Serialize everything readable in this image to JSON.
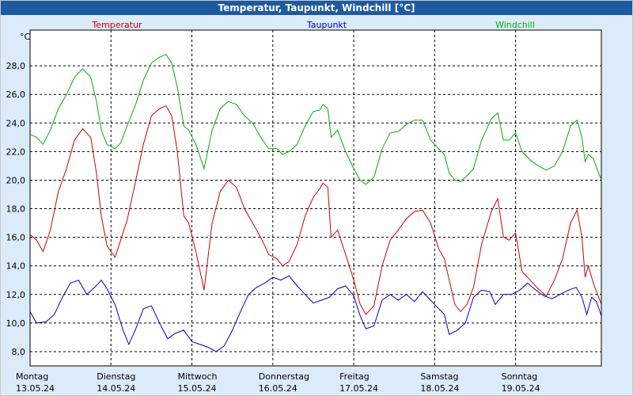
{
  "chart_data": {
    "type": "line",
    "title": "Temperatur, Taupunkt, Windchill [°C]",
    "ylabel": "°C",
    "ylim": [
      7,
      30.5
    ],
    "yticks": [
      "8,0",
      "10,0",
      "12,0",
      "14,0",
      "16,0",
      "18,0",
      "20,0",
      "22,0",
      "24,0",
      "26,0",
      "28,0"
    ],
    "xlim": [
      0,
      7.06
    ],
    "xticks": [
      {
        "day": "Montag",
        "date": "13.05.24"
      },
      {
        "day": "Dienstag",
        "date": "14.05.24"
      },
      {
        "day": "Mittwoch",
        "date": "15.05.24"
      },
      {
        "day": "Donnerstag",
        "date": "16.05.24"
      },
      {
        "day": "Freitag",
        "date": "17.05.24"
      },
      {
        "day": "Samstag",
        "date": "18.05.24"
      },
      {
        "day": "Sonntag",
        "date": "19.05.24"
      }
    ],
    "grid": true,
    "series": [
      {
        "name": "Temperatur",
        "color": "#cc0000",
        "points": [
          [
            0,
            16.2
          ],
          [
            0.08,
            15.8
          ],
          [
            0.16,
            15.0
          ],
          [
            0.25,
            16.5
          ],
          [
            0.35,
            19.2
          ],
          [
            0.45,
            20.8
          ],
          [
            0.55,
            22.8
          ],
          [
            0.65,
            23.6
          ],
          [
            0.75,
            23.0
          ],
          [
            0.82,
            20.5
          ],
          [
            0.88,
            17.5
          ],
          [
            0.95,
            15.4
          ],
          [
            1.05,
            14.6
          ],
          [
            1.12,
            15.8
          ],
          [
            1.2,
            17.2
          ],
          [
            1.3,
            19.8
          ],
          [
            1.4,
            22.5
          ],
          [
            1.5,
            24.5
          ],
          [
            1.6,
            25.0
          ],
          [
            1.68,
            25.2
          ],
          [
            1.75,
            24.5
          ],
          [
            1.82,
            22.0
          ],
          [
            1.9,
            17.5
          ],
          [
            1.96,
            17.0
          ],
          [
            2.05,
            15.0
          ],
          [
            2.15,
            12.3
          ],
          [
            2.25,
            17.0
          ],
          [
            2.35,
            19.2
          ],
          [
            2.45,
            20.0
          ],
          [
            2.55,
            19.5
          ],
          [
            2.65,
            18.0
          ],
          [
            2.75,
            17.0
          ],
          [
            2.85,
            16.0
          ],
          [
            2.95,
            14.8
          ],
          [
            3.05,
            14.5
          ],
          [
            3.12,
            14.0
          ],
          [
            3.2,
            14.3
          ],
          [
            3.3,
            15.5
          ],
          [
            3.4,
            17.5
          ],
          [
            3.5,
            18.8
          ],
          [
            3.58,
            19.4
          ],
          [
            3.62,
            19.8
          ],
          [
            3.68,
            19.5
          ],
          [
            3.72,
            16.0
          ],
          [
            3.8,
            16.5
          ],
          [
            3.9,
            14.8
          ],
          [
            4.0,
            13.0
          ],
          [
            4.08,
            11.3
          ],
          [
            4.15,
            10.6
          ],
          [
            4.25,
            11.2
          ],
          [
            4.35,
            14.0
          ],
          [
            4.45,
            15.8
          ],
          [
            4.55,
            16.5
          ],
          [
            4.65,
            17.3
          ],
          [
            4.75,
            17.8
          ],
          [
            4.85,
            17.9
          ],
          [
            4.95,
            17.0
          ],
          [
            5.05,
            15.2
          ],
          [
            5.12,
            14.5
          ],
          [
            5.18,
            13.0
          ],
          [
            5.25,
            11.3
          ],
          [
            5.32,
            10.8
          ],
          [
            5.4,
            11.3
          ],
          [
            5.48,
            12.5
          ],
          [
            5.58,
            15.5
          ],
          [
            5.7,
            17.8
          ],
          [
            5.78,
            18.7
          ],
          [
            5.85,
            16.0
          ],
          [
            5.92,
            15.8
          ],
          [
            6.0,
            16.3
          ],
          [
            6.08,
            13.6
          ],
          [
            6.18,
            13.0
          ],
          [
            6.28,
            12.4
          ],
          [
            6.38,
            11.9
          ],
          [
            6.48,
            13.0
          ],
          [
            6.58,
            14.5
          ],
          [
            6.68,
            17.0
          ],
          [
            6.76,
            17.9
          ],
          [
            6.82,
            16.0
          ],
          [
            6.86,
            13.2
          ],
          [
            6.9,
            14.0
          ],
          [
            6.96,
            12.8
          ],
          [
            7.06,
            11.3
          ]
        ]
      },
      {
        "name": "Taupunkt",
        "color": "#0000c0",
        "points": [
          [
            0,
            10.8
          ],
          [
            0.08,
            10.0
          ],
          [
            0.2,
            10.1
          ],
          [
            0.3,
            10.6
          ],
          [
            0.4,
            11.8
          ],
          [
            0.5,
            12.8
          ],
          [
            0.6,
            13.0
          ],
          [
            0.7,
            12.0
          ],
          [
            0.8,
            12.5
          ],
          [
            0.88,
            13.0
          ],
          [
            0.95,
            12.4
          ],
          [
            1.05,
            11.3
          ],
          [
            1.15,
            9.5
          ],
          [
            1.22,
            8.5
          ],
          [
            1.3,
            9.5
          ],
          [
            1.4,
            11.0
          ],
          [
            1.5,
            11.2
          ],
          [
            1.6,
            10.0
          ],
          [
            1.7,
            8.9
          ],
          [
            1.8,
            9.3
          ],
          [
            1.9,
            9.5
          ],
          [
            2.0,
            8.7
          ],
          [
            2.1,
            8.5
          ],
          [
            2.2,
            8.3
          ],
          [
            2.3,
            8.0
          ],
          [
            2.4,
            8.4
          ],
          [
            2.5,
            9.5
          ],
          [
            2.6,
            10.8
          ],
          [
            2.7,
            12.0
          ],
          [
            2.8,
            12.5
          ],
          [
            2.9,
            12.8
          ],
          [
            3.0,
            13.2
          ],
          [
            3.1,
            13.0
          ],
          [
            3.2,
            13.3
          ],
          [
            3.3,
            12.6
          ],
          [
            3.4,
            12.0
          ],
          [
            3.5,
            11.4
          ],
          [
            3.6,
            11.6
          ],
          [
            3.7,
            11.8
          ],
          [
            3.8,
            12.4
          ],
          [
            3.9,
            12.6
          ],
          [
            4.0,
            11.9
          ],
          [
            4.08,
            10.5
          ],
          [
            4.15,
            9.6
          ],
          [
            4.25,
            9.8
          ],
          [
            4.35,
            11.6
          ],
          [
            4.45,
            12.0
          ],
          [
            4.55,
            11.6
          ],
          [
            4.65,
            12.0
          ],
          [
            4.75,
            11.5
          ],
          [
            4.85,
            12.2
          ],
          [
            4.95,
            11.6
          ],
          [
            5.05,
            11.0
          ],
          [
            5.12,
            10.6
          ],
          [
            5.18,
            9.2
          ],
          [
            5.28,
            9.5
          ],
          [
            5.38,
            10.0
          ],
          [
            5.48,
            11.8
          ],
          [
            5.58,
            12.3
          ],
          [
            5.68,
            12.2
          ],
          [
            5.75,
            11.3
          ],
          [
            5.85,
            12.0
          ],
          [
            5.95,
            12.0
          ],
          [
            6.05,
            12.3
          ],
          [
            6.15,
            12.8
          ],
          [
            6.25,
            12.3
          ],
          [
            6.35,
            11.9
          ],
          [
            6.45,
            11.7
          ],
          [
            6.55,
            12.0
          ],
          [
            6.65,
            12.3
          ],
          [
            6.75,
            12.5
          ],
          [
            6.82,
            11.8
          ],
          [
            6.88,
            10.6
          ],
          [
            6.94,
            11.8
          ],
          [
            7.0,
            11.5
          ],
          [
            7.06,
            10.5
          ]
        ]
      },
      {
        "name": "Windchill",
        "color": "#00b000",
        "points": [
          [
            0,
            23.2
          ],
          [
            0.08,
            23.0
          ],
          [
            0.16,
            22.5
          ],
          [
            0.25,
            23.5
          ],
          [
            0.35,
            25.0
          ],
          [
            0.45,
            26.0
          ],
          [
            0.55,
            27.2
          ],
          [
            0.65,
            27.8
          ],
          [
            0.75,
            27.2
          ],
          [
            0.82,
            25.5
          ],
          [
            0.88,
            23.5
          ],
          [
            0.95,
            22.5
          ],
          [
            1.05,
            22.2
          ],
          [
            1.12,
            22.6
          ],
          [
            1.2,
            23.8
          ],
          [
            1.3,
            25.2
          ],
          [
            1.4,
            27.0
          ],
          [
            1.5,
            28.2
          ],
          [
            1.6,
            28.6
          ],
          [
            1.68,
            28.8
          ],
          [
            1.75,
            28.2
          ],
          [
            1.82,
            26.5
          ],
          [
            1.9,
            23.8
          ],
          [
            1.96,
            23.5
          ],
          [
            2.05,
            22.5
          ],
          [
            2.15,
            20.8
          ],
          [
            2.25,
            23.5
          ],
          [
            2.35,
            25.0
          ],
          [
            2.45,
            25.5
          ],
          [
            2.55,
            25.3
          ],
          [
            2.65,
            24.5
          ],
          [
            2.75,
            24.0
          ],
          [
            2.85,
            23.0
          ],
          [
            2.95,
            22.2
          ],
          [
            3.05,
            22.2
          ],
          [
            3.12,
            21.8
          ],
          [
            3.2,
            22.0
          ],
          [
            3.3,
            22.5
          ],
          [
            3.4,
            23.8
          ],
          [
            3.5,
            24.8
          ],
          [
            3.58,
            24.9
          ],
          [
            3.62,
            25.3
          ],
          [
            3.68,
            25.0
          ],
          [
            3.72,
            23.0
          ],
          [
            3.8,
            23.5
          ],
          [
            3.9,
            22.0
          ],
          [
            4.0,
            20.8
          ],
          [
            4.08,
            20.0
          ],
          [
            4.15,
            19.7
          ],
          [
            4.25,
            20.2
          ],
          [
            4.35,
            22.2
          ],
          [
            4.45,
            23.3
          ],
          [
            4.55,
            23.4
          ],
          [
            4.65,
            23.9
          ],
          [
            4.75,
            24.2
          ],
          [
            4.85,
            24.2
          ],
          [
            4.95,
            22.8
          ],
          [
            5.05,
            22.2
          ],
          [
            5.12,
            21.8
          ],
          [
            5.18,
            20.5
          ],
          [
            5.25,
            20.0
          ],
          [
            5.32,
            19.9
          ],
          [
            5.4,
            20.3
          ],
          [
            5.48,
            20.8
          ],
          [
            5.58,
            22.8
          ],
          [
            5.7,
            24.3
          ],
          [
            5.78,
            24.7
          ],
          [
            5.85,
            22.8
          ],
          [
            5.92,
            22.8
          ],
          [
            6.0,
            23.3
          ],
          [
            6.08,
            22.0
          ],
          [
            6.18,
            21.4
          ],
          [
            6.28,
            21.0
          ],
          [
            6.38,
            20.7
          ],
          [
            6.48,
            21.0
          ],
          [
            6.58,
            22.0
          ],
          [
            6.68,
            23.8
          ],
          [
            6.76,
            24.2
          ],
          [
            6.82,
            23.0
          ],
          [
            6.86,
            21.3
          ],
          [
            6.9,
            21.8
          ],
          [
            6.96,
            21.5
          ],
          [
            7.06,
            20.0
          ]
        ]
      }
    ]
  }
}
